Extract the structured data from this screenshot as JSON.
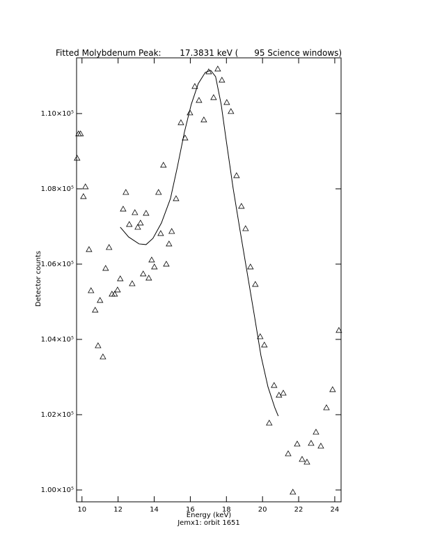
{
  "chart_data": {
    "type": "scatter",
    "title": "Fitted Molybdenum Peak:       17.3831 keV (      95 Science windows)",
    "x_label": "Energy (keV)",
    "subtitle": "Jemx1: orbit 1651",
    "y_label": "Detector counts",
    "xlim": [
      9.7,
      24.35
    ],
    "ylim": [
      99685,
      111480
    ],
    "xticks": [
      10,
      12,
      14,
      16,
      18,
      20,
      22,
      24
    ],
    "yticks": [
      {
        "value": 100000,
        "label": "1.00×10⁵"
      },
      {
        "value": 102000,
        "label": "1.02×10⁵"
      },
      {
        "value": 104000,
        "label": "1.04×10⁵"
      },
      {
        "value": 106000,
        "label": "1.06×10⁵"
      },
      {
        "value": 108000,
        "label": "1.08×10⁵"
      },
      {
        "value": 110000,
        "label": "1.10×10⁵"
      }
    ],
    "series": [
      {
        "type": "scatter",
        "marker": "triangle",
        "color": "#000000",
        "x": [
          9.73,
          9.81,
          9.92,
          10.08,
          10.19,
          10.39,
          10.5,
          10.73,
          10.89,
          11.0,
          11.16,
          11.31,
          11.5,
          11.66,
          11.81,
          11.97,
          12.12,
          12.28,
          12.43,
          12.62,
          12.78,
          12.93,
          13.09,
          13.24,
          13.39,
          13.55,
          13.7,
          13.86,
          14.01,
          14.24,
          14.36,
          14.51,
          14.67,
          14.82,
          14.97,
          15.21,
          15.48,
          15.71,
          15.98,
          16.25,
          16.48,
          16.75,
          17.02,
          17.29,
          17.52,
          17.75,
          18.02,
          18.25,
          18.56,
          18.83,
          19.06,
          19.33,
          19.6,
          19.87,
          20.1,
          20.37,
          20.64,
          20.91,
          21.15,
          21.42,
          21.68,
          21.92,
          22.19,
          22.46,
          22.69,
          22.96,
          23.23,
          23.54,
          23.88,
          24.23
        ],
        "values": [
          108815,
          109463,
          109463,
          107796,
          108056,
          106389,
          105296,
          104778,
          103833,
          105037,
          103537,
          105889,
          106444,
          105204,
          105204,
          105315,
          105611,
          107463,
          107907,
          107056,
          105481,
          107370,
          106981,
          107093,
          105741,
          107352,
          105630,
          106111,
          105926,
          107907,
          106815,
          108630,
          106000,
          106537,
          106870,
          107741,
          109759,
          109352,
          110019,
          110722,
          110352,
          109833,
          111111,
          110426,
          111185,
          110889,
          110296,
          110056,
          108352,
          107537,
          106944,
          105926,
          105463,
          104074,
          103852,
          101778,
          102778,
          102519,
          102574,
          100963,
          99944,
          101222,
          100815,
          100741,
          101241,
          101537,
          101167,
          102185,
          102667,
          104241
        ]
      },
      {
        "type": "line",
        "color": "#000000",
        "x": [
          12.12,
          12.58,
          13.16,
          13.55,
          13.93,
          14.4,
          14.9,
          15.28,
          15.67,
          16.05,
          16.44,
          16.83,
          17.13,
          17.4,
          17.71,
          17.98,
          18.37,
          18.75,
          19.14,
          19.53,
          19.91,
          20.3,
          20.68,
          20.87
        ],
        "values": [
          106981,
          106722,
          106537,
          106519,
          106685,
          107093,
          107741,
          108574,
          109500,
          110241,
          110796,
          111093,
          111148,
          110981,
          110241,
          109315,
          108019,
          106907,
          105796,
          104685,
          103574,
          102741,
          102185,
          101963
        ]
      }
    ]
  }
}
